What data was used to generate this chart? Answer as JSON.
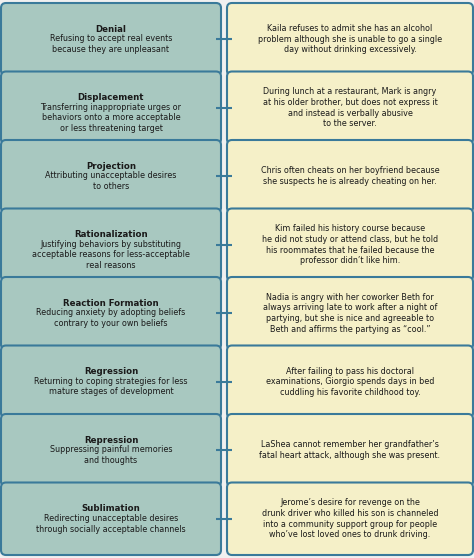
{
  "background_color": "#f0f0f0",
  "left_box_color": "#a8c8c0",
  "right_box_color": "#f5f0c8",
  "left_box_edge": "#3a7a9a",
  "right_box_edge": "#3a7a9a",
  "line_color": "#3a7a9a",
  "text_color": "#1a1a1a",
  "rows": [
    {
      "term": "Denial",
      "definition": "Refusing to accept real events\nbecause they are unpleasant",
      "example": "Kaila refuses to admit she has an alcohol\nproblem although she is unable to go a single\nday without drinking excessively."
    },
    {
      "term": "Displacement",
      "definition": "Transferring inappropriate urges or\nbehaviors onto a more acceptable\nor less threatening target",
      "example": "During lunch at a restaurant, Mark is angry\nat his older brother, but does not express it\nand instead is verbally abusive\nto the server."
    },
    {
      "term": "Projection",
      "definition": "Attributing unacceptable desires\nto others",
      "example": "Chris often cheats on her boyfriend because\nshe suspects he is already cheating on her."
    },
    {
      "term": "Rationalization",
      "definition": "Justifying behaviors by substituting\nacceptable reasons for less-acceptable\nreal reasons",
      "example": "Kim failed his history course because\nhe did not study or attend class, but he told\nhis roommates that he failed because the\nprofessor didn’t like him."
    },
    {
      "term": "Reaction Formation",
      "definition": "Reducing anxiety by adopting beliefs\ncontrary to your own beliefs",
      "example": "Nadia is angry with her coworker Beth for\nalways arriving late to work after a night of\npartying, but she is nice and agreeable to\nBeth and affirms the partying as “cool.”"
    },
    {
      "term": "Regression",
      "definition": "Returning to coping strategies for less\nmature stages of development",
      "example": "After failing to pass his doctoral\nexaminations, Giorgio spends days in bed\ncuddling his favorite childhood toy."
    },
    {
      "term": "Repression",
      "definition": "Suppressing painful memories\nand thoughts",
      "example": "LaShea cannot remember her grandfather’s\nfatal heart attack, although she was present."
    },
    {
      "term": "Sublimation",
      "definition": "Redirecting unacceptable desires\nthrough socially acceptable channels",
      "example": "Jerome’s desire for revenge on the\ndrunk driver who killed his son is channeled\ninto a community support group for people\nwho’ve lost loved ones to drunk driving."
    }
  ]
}
